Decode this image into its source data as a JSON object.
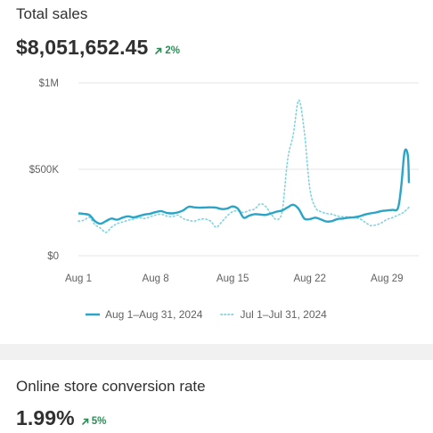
{
  "sales_card": {
    "title": "Total sales",
    "value": "$8,051,652.45",
    "trend": "2%",
    "trend_direction": "up"
  },
  "conversion_card": {
    "title": "Online store conversion rate",
    "value": "1.99%",
    "trend": "5%",
    "trend_direction": "up"
  },
  "colors": {
    "primary_series": "#2aa5c7",
    "comparison_series": "#7fd3e0",
    "trend_positive": "#2e8b57",
    "gridline": "#e6e6e6"
  },
  "chart_data": {
    "type": "line",
    "yticks": [
      {
        "value": 0,
        "label": "$0"
      },
      {
        "value": 500000,
        "label": "$500K"
      },
      {
        "value": 1000000,
        "label": "$1M"
      }
    ],
    "xticks": [
      {
        "day": 1,
        "label": "Aug 1"
      },
      {
        "day": 8,
        "label": "Aug 8"
      },
      {
        "day": 15,
        "label": "Aug 15"
      },
      {
        "day": 22,
        "label": "Aug 22"
      },
      {
        "day": 29,
        "label": "Aug 29"
      }
    ],
    "xlim": [
      1,
      31
    ],
    "ylim": [
      0,
      1000000
    ],
    "grid": true,
    "legend_position": "bottom",
    "series": [
      {
        "name": "Aug 1–Aug 31, 2024",
        "style": "solid",
        "x": [
          1,
          1.5,
          2,
          2.5,
          3,
          3.5,
          4,
          4.5,
          5,
          5.5,
          6,
          6.5,
          7,
          7.5,
          8,
          8.5,
          9,
          9.5,
          10,
          10.5,
          11,
          11.5,
          12,
          12.5,
          13,
          13.5,
          14,
          14.5,
          15,
          15.5,
          16,
          16.5,
          17,
          17.5,
          18,
          18.5,
          19,
          19.5,
          20,
          20.5,
          21,
          21.5,
          22,
          22.5,
          23,
          23.5,
          24,
          24.5,
          25,
          25.5,
          26,
          26.5,
          27,
          27.5,
          28,
          28.5,
          29,
          29.5,
          30,
          30.3,
          30.6,
          30.9,
          31
        ],
        "values": [
          245000,
          242000,
          235000,
          200000,
          185000,
          200000,
          215000,
          208000,
          220000,
          228000,
          222000,
          230000,
          238000,
          243000,
          252000,
          258000,
          248000,
          245000,
          250000,
          262000,
          283000,
          280000,
          278000,
          279000,
          280000,
          278000,
          270000,
          273000,
          285000,
          270000,
          220000,
          232000,
          240000,
          238000,
          236000,
          245000,
          255000,
          262000,
          280000,
          295000,
          270000,
          215000,
          212000,
          220000,
          210000,
          198000,
          200000,
          212000,
          215000,
          220000,
          222000,
          228000,
          238000,
          245000,
          250000,
          258000,
          262000,
          265000,
          275000,
          400000,
          600000,
          580000,
          420000
        ]
      },
      {
        "name": "Jul 1–Jul 31, 2024",
        "style": "dotted",
        "x": [
          1,
          1.5,
          2,
          2.5,
          3,
          3.5,
          4,
          4.5,
          5,
          5.5,
          6,
          6.5,
          7,
          7.5,
          8,
          8.5,
          9,
          9.5,
          10,
          10.5,
          11,
          11.5,
          12,
          12.5,
          13,
          13.5,
          14,
          14.5,
          15,
          15.5,
          16,
          16.5,
          17,
          17.5,
          18,
          18.5,
          19,
          19.5,
          20,
          20.5,
          21,
          21.5,
          22,
          22.5,
          23,
          23.5,
          24,
          24.5,
          25,
          25.5,
          26,
          26.5,
          27,
          27.5,
          28,
          28.5,
          29,
          29.5,
          30,
          30.5,
          31
        ],
        "values": [
          200000,
          205000,
          222000,
          180000,
          160000,
          135000,
          165000,
          185000,
          195000,
          205000,
          212000,
          220000,
          215000,
          225000,
          235000,
          240000,
          230000,
          225000,
          235000,
          215000,
          205000,
          200000,
          210000,
          212000,
          200000,
          165000,
          195000,
          230000,
          255000,
          260000,
          250000,
          262000,
          270000,
          300000,
          285000,
          240000,
          210000,
          260000,
          560000,
          700000,
          900000,
          720000,
          390000,
          280000,
          255000,
          245000,
          240000,
          230000,
          225000,
          225000,
          220000,
          215000,
          195000,
          175000,
          178000,
          190000,
          210000,
          220000,
          235000,
          250000,
          280000
        ]
      }
    ]
  }
}
